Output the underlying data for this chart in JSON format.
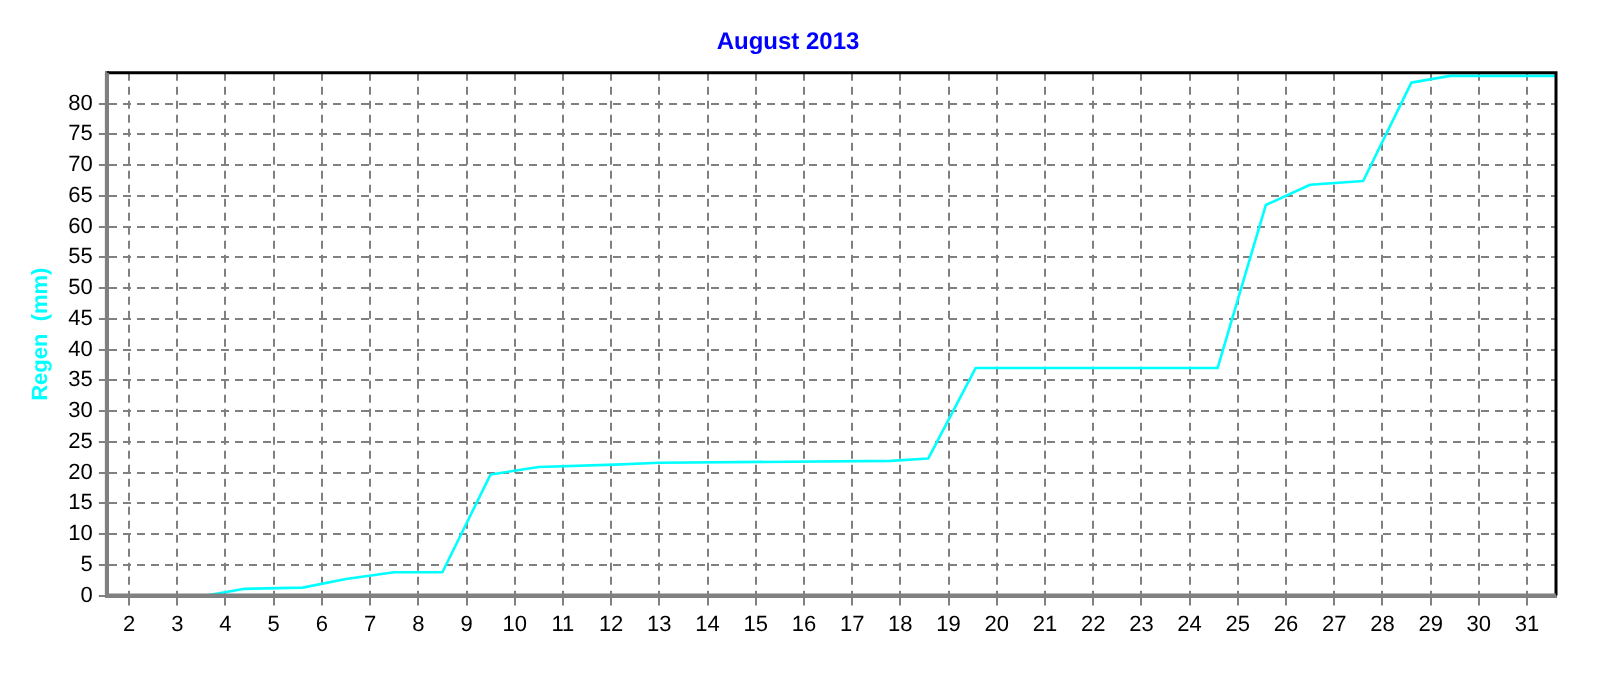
{
  "chart_data": {
    "type": "line",
    "title": "August 2013",
    "ylabel": "Regen  (mm)",
    "x": [
      1.54,
      3.6,
      4.4,
      5.6,
      6.5,
      7.5,
      8.5,
      9.5,
      10.5,
      12.07,
      13.0,
      17.8,
      18.58,
      19.56,
      24.58,
      25.58,
      26.5,
      27.6,
      28.6,
      29.4,
      31.6
    ],
    "series": [
      {
        "color": "#00ffff",
        "values": [
          0,
          0,
          1.1,
          1.3,
          2.7,
          3.8,
          3.8,
          19.7,
          20.9,
          21.3,
          21.6,
          21.9,
          22.3,
          37.0,
          37.0,
          63.5,
          66.8,
          67.4,
          83.4,
          84.5,
          84.5
        ]
      }
    ],
    "xlim": [
      1.54,
      31.6
    ],
    "xticks": [
      2,
      3,
      4,
      5,
      6,
      7,
      8,
      9,
      10,
      11,
      12,
      13,
      14,
      15,
      16,
      17,
      18,
      19,
      20,
      21,
      22,
      23,
      24,
      25,
      26,
      27,
      28,
      29,
      30,
      31
    ],
    "ylim": [
      0,
      85
    ],
    "yticks": [
      0,
      5,
      10,
      15,
      20,
      25,
      30,
      35,
      40,
      45,
      50,
      55,
      60,
      65,
      70,
      75,
      80
    ],
    "grid": true,
    "legend": false,
    "marker": "none",
    "line_style": "solid"
  }
}
